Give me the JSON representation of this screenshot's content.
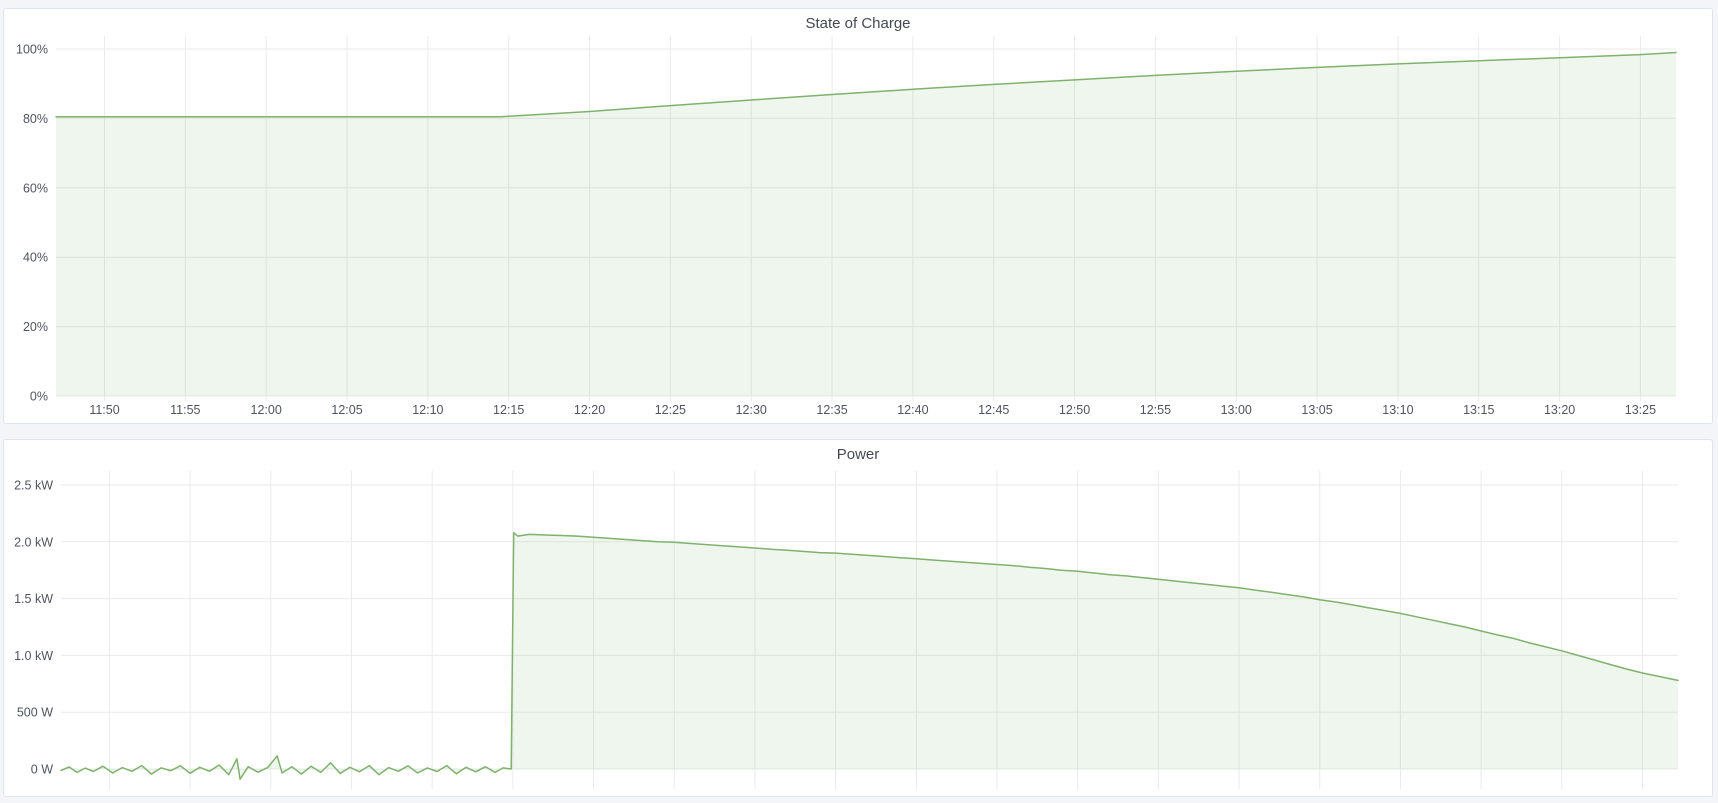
{
  "page": {
    "background_color": "#f4f5f9",
    "panel_background": "#ffffff",
    "panel_border_color": "#dfe3ed",
    "grid_color": "#e9eaeb",
    "tick_text_color": "#50545b",
    "title_color": "#45494f"
  },
  "panels": [
    {
      "title": "State of Charge"
    },
    {
      "title": "Power"
    }
  ],
  "chart_data": [
    {
      "type": "area",
      "title": "State of Charge",
      "unit": "percent",
      "line_color": "#7eb26d",
      "fill_color": "rgba(126,178,109,0.12)",
      "legend": "none",
      "grid": true,
      "x_range": [
        2,
        102.2
      ],
      "x_ticks": [
        {
          "t": 5,
          "label": "11:50"
        },
        {
          "t": 10,
          "label": "11:55"
        },
        {
          "t": 15,
          "label": "12:00"
        },
        {
          "t": 20,
          "label": "12:05"
        },
        {
          "t": 25,
          "label": "12:10"
        },
        {
          "t": 30,
          "label": "12:15"
        },
        {
          "t": 35,
          "label": "12:20"
        },
        {
          "t": 40,
          "label": "12:25"
        },
        {
          "t": 45,
          "label": "12:30"
        },
        {
          "t": 50,
          "label": "12:35"
        },
        {
          "t": 55,
          "label": "12:40"
        },
        {
          "t": 60,
          "label": "12:45"
        },
        {
          "t": 65,
          "label": "12:50"
        },
        {
          "t": 70,
          "label": "12:55"
        },
        {
          "t": 75,
          "label": "13:00"
        },
        {
          "t": 80,
          "label": "13:05"
        },
        {
          "t": 85,
          "label": "13:10"
        },
        {
          "t": 90,
          "label": "13:15"
        },
        {
          "t": 95,
          "label": "13:20"
        },
        {
          "t": 100,
          "label": "13:25"
        }
      ],
      "y_range": [
        -1.44,
        103.75
      ],
      "y_ticks": [
        {
          "v": 100,
          "label": "100%"
        },
        {
          "v": 80,
          "label": "80%"
        },
        {
          "v": 60,
          "label": "60%"
        },
        {
          "v": 40,
          "label": "40%"
        },
        {
          "v": 20,
          "label": "20%"
        },
        {
          "v": 0,
          "label": "0%"
        }
      ],
      "series": [
        {
          "name": "State of Charge",
          "points": [
            [
              2,
              80.5
            ],
            [
              6,
              80.5
            ],
            [
              10,
              80.5
            ],
            [
              14,
              80.5
            ],
            [
              18,
              80.5
            ],
            [
              22,
              80.5
            ],
            [
              26,
              80.5
            ],
            [
              29.5,
              80.5
            ],
            [
              30,
              80.6
            ],
            [
              35,
              82.0
            ],
            [
              40,
              83.7
            ],
            [
              45,
              85.3
            ],
            [
              50,
              86.9
            ],
            [
              55,
              88.4
            ],
            [
              60,
              89.8
            ],
            [
              65,
              91.1
            ],
            [
              70,
              92.4
            ],
            [
              75,
              93.6
            ],
            [
              80,
              94.7
            ],
            [
              85,
              95.7
            ],
            [
              90,
              96.6
            ],
            [
              95,
              97.5
            ],
            [
              100,
              98.4
            ],
            [
              102.2,
              99.0
            ]
          ]
        }
      ]
    },
    {
      "type": "area",
      "title": "Power",
      "unit": "kW",
      "line_color": "#7eb26d",
      "fill_color": "rgba(126,178,109,0.12)",
      "legend": "none",
      "grid": true,
      "x_range": [
        2,
        102.2
      ],
      "x_ticks": [
        {
          "t": 5,
          "label": "11:50"
        },
        {
          "t": 10,
          "label": "11:55"
        },
        {
          "t": 15,
          "label": "12:00"
        },
        {
          "t": 20,
          "label": "12:05"
        },
        {
          "t": 25,
          "label": "12:10"
        },
        {
          "t": 30,
          "label": "12:15"
        },
        {
          "t": 35,
          "label": "12:20"
        },
        {
          "t": 40,
          "label": "12:25"
        },
        {
          "t": 45,
          "label": "12:30"
        },
        {
          "t": 50,
          "label": "12:35"
        },
        {
          "t": 55,
          "label": "12:40"
        },
        {
          "t": 60,
          "label": "12:45"
        },
        {
          "t": 65,
          "label": "12:50"
        },
        {
          "t": 70,
          "label": "12:55"
        },
        {
          "t": 75,
          "label": "13:00"
        },
        {
          "t": 80,
          "label": "13:05"
        },
        {
          "t": 85,
          "label": "13:10"
        },
        {
          "t": 90,
          "label": "13:15"
        },
        {
          "t": 95,
          "label": "13:20"
        },
        {
          "t": 100,
          "label": "13:25"
        }
      ],
      "x_labels_visible": false,
      "y_range": [
        -0.176,
        2.623
      ],
      "y_ticks": [
        {
          "v": 2.5,
          "label": "2.5 kW"
        },
        {
          "v": 2.0,
          "label": "2.0 kW"
        },
        {
          "v": 1.5,
          "label": "1.5 kW"
        },
        {
          "v": 1.0,
          "label": "1.0 kW"
        },
        {
          "v": 0.5,
          "label": "500 W"
        },
        {
          "v": 0,
          "label": "0 W"
        }
      ],
      "series": [
        {
          "name": "Power",
          "points": [
            [
              2,
              -0.012
            ],
            [
              2.5,
              0.018
            ],
            [
              3,
              -0.03
            ],
            [
              3.5,
              0.008
            ],
            [
              4,
              -0.022
            ],
            [
              4.6,
              0.025
            ],
            [
              5.2,
              -0.035
            ],
            [
              5.8,
              0.012
            ],
            [
              6.4,
              -0.02
            ],
            [
              7,
              0.03
            ],
            [
              7.6,
              -0.045
            ],
            [
              8.2,
              0.01
            ],
            [
              8.8,
              -0.015
            ],
            [
              9.4,
              0.028
            ],
            [
              10,
              -0.038
            ],
            [
              10.6,
              0.015
            ],
            [
              11.2,
              -0.02
            ],
            [
              11.8,
              0.035
            ],
            [
              12.4,
              -0.05
            ],
            [
              12.9,
              0.09
            ],
            [
              13.1,
              -0.09
            ],
            [
              13.6,
              0.02
            ],
            [
              14.2,
              -0.028
            ],
            [
              14.8,
              0.012
            ],
            [
              15.4,
              0.115
            ],
            [
              15.7,
              -0.035
            ],
            [
              16.3,
              0.02
            ],
            [
              16.9,
              -0.045
            ],
            [
              17.5,
              0.025
            ],
            [
              18.1,
              -0.03
            ],
            [
              18.7,
              0.055
            ],
            [
              19.3,
              -0.04
            ],
            [
              19.9,
              0.015
            ],
            [
              20.5,
              -0.025
            ],
            [
              21.1,
              0.03
            ],
            [
              21.7,
              -0.05
            ],
            [
              22.3,
              0.012
            ],
            [
              22.9,
              -0.02
            ],
            [
              23.5,
              0.028
            ],
            [
              24.1,
              -0.035
            ],
            [
              24.7,
              0.01
            ],
            [
              25.3,
              -0.022
            ],
            [
              25.9,
              0.03
            ],
            [
              26.5,
              -0.042
            ],
            [
              27.1,
              0.015
            ],
            [
              27.7,
              -0.025
            ],
            [
              28.3,
              0.02
            ],
            [
              28.9,
              -0.03
            ],
            [
              29.4,
              0.01
            ],
            [
              29.9,
              0.0
            ],
            [
              30.05,
              2.08
            ],
            [
              30.3,
              2.05
            ],
            [
              31,
              2.065
            ],
            [
              32,
              2.06
            ],
            [
              33,
              2.055
            ],
            [
              34,
              2.05
            ],
            [
              35,
              2.04
            ],
            [
              36,
              2.03
            ],
            [
              37,
              2.02
            ],
            [
              38,
              2.01
            ],
            [
              39,
              2.0
            ],
            [
              40,
              1.995
            ],
            [
              41,
              1.985
            ],
            [
              42,
              1.975
            ],
            [
              43,
              1.965
            ],
            [
              44,
              1.955
            ],
            [
              45,
              1.945
            ],
            [
              46,
              1.935
            ],
            [
              47,
              1.925
            ],
            [
              48,
              1.915
            ],
            [
              49,
              1.905
            ],
            [
              50,
              1.9
            ],
            [
              51,
              1.89
            ],
            [
              52,
              1.88
            ],
            [
              53,
              1.87
            ],
            [
              54,
              1.86
            ],
            [
              55,
              1.85
            ],
            [
              56,
              1.84
            ],
            [
              57,
              1.83
            ],
            [
              58,
              1.82
            ],
            [
              59,
              1.81
            ],
            [
              60,
              1.8
            ],
            [
              61,
              1.79
            ],
            [
              62,
              1.775
            ],
            [
              63,
              1.765
            ],
            [
              64,
              1.75
            ],
            [
              65,
              1.74
            ],
            [
              66,
              1.725
            ],
            [
              67,
              1.71
            ],
            [
              68,
              1.7
            ],
            [
              69,
              1.685
            ],
            [
              70,
              1.67
            ],
            [
              71,
              1.655
            ],
            [
              72,
              1.64
            ],
            [
              73,
              1.625
            ],
            [
              74,
              1.61
            ],
            [
              75,
              1.595
            ],
            [
              76,
              1.575
            ],
            [
              77,
              1.555
            ],
            [
              78,
              1.535
            ],
            [
              79,
              1.515
            ],
            [
              80,
              1.49
            ],
            [
              81,
              1.47
            ],
            [
              82,
              1.445
            ],
            [
              83,
              1.42
            ],
            [
              84,
              1.395
            ],
            [
              85,
              1.37
            ],
            [
              86,
              1.34
            ],
            [
              87,
              1.31
            ],
            [
              88,
              1.28
            ],
            [
              89,
              1.25
            ],
            [
              90,
              1.215
            ],
            [
              91,
              1.18
            ],
            [
              92,
              1.15
            ],
            [
              93,
              1.11
            ],
            [
              94,
              1.075
            ],
            [
              95,
              1.04
            ],
            [
              96,
              1.0
            ],
            [
              97,
              0.96
            ],
            [
              98,
              0.92
            ],
            [
              99,
              0.88
            ],
            [
              100,
              0.845
            ],
            [
              101,
              0.815
            ],
            [
              102.2,
              0.78
            ]
          ]
        }
      ]
    }
  ]
}
